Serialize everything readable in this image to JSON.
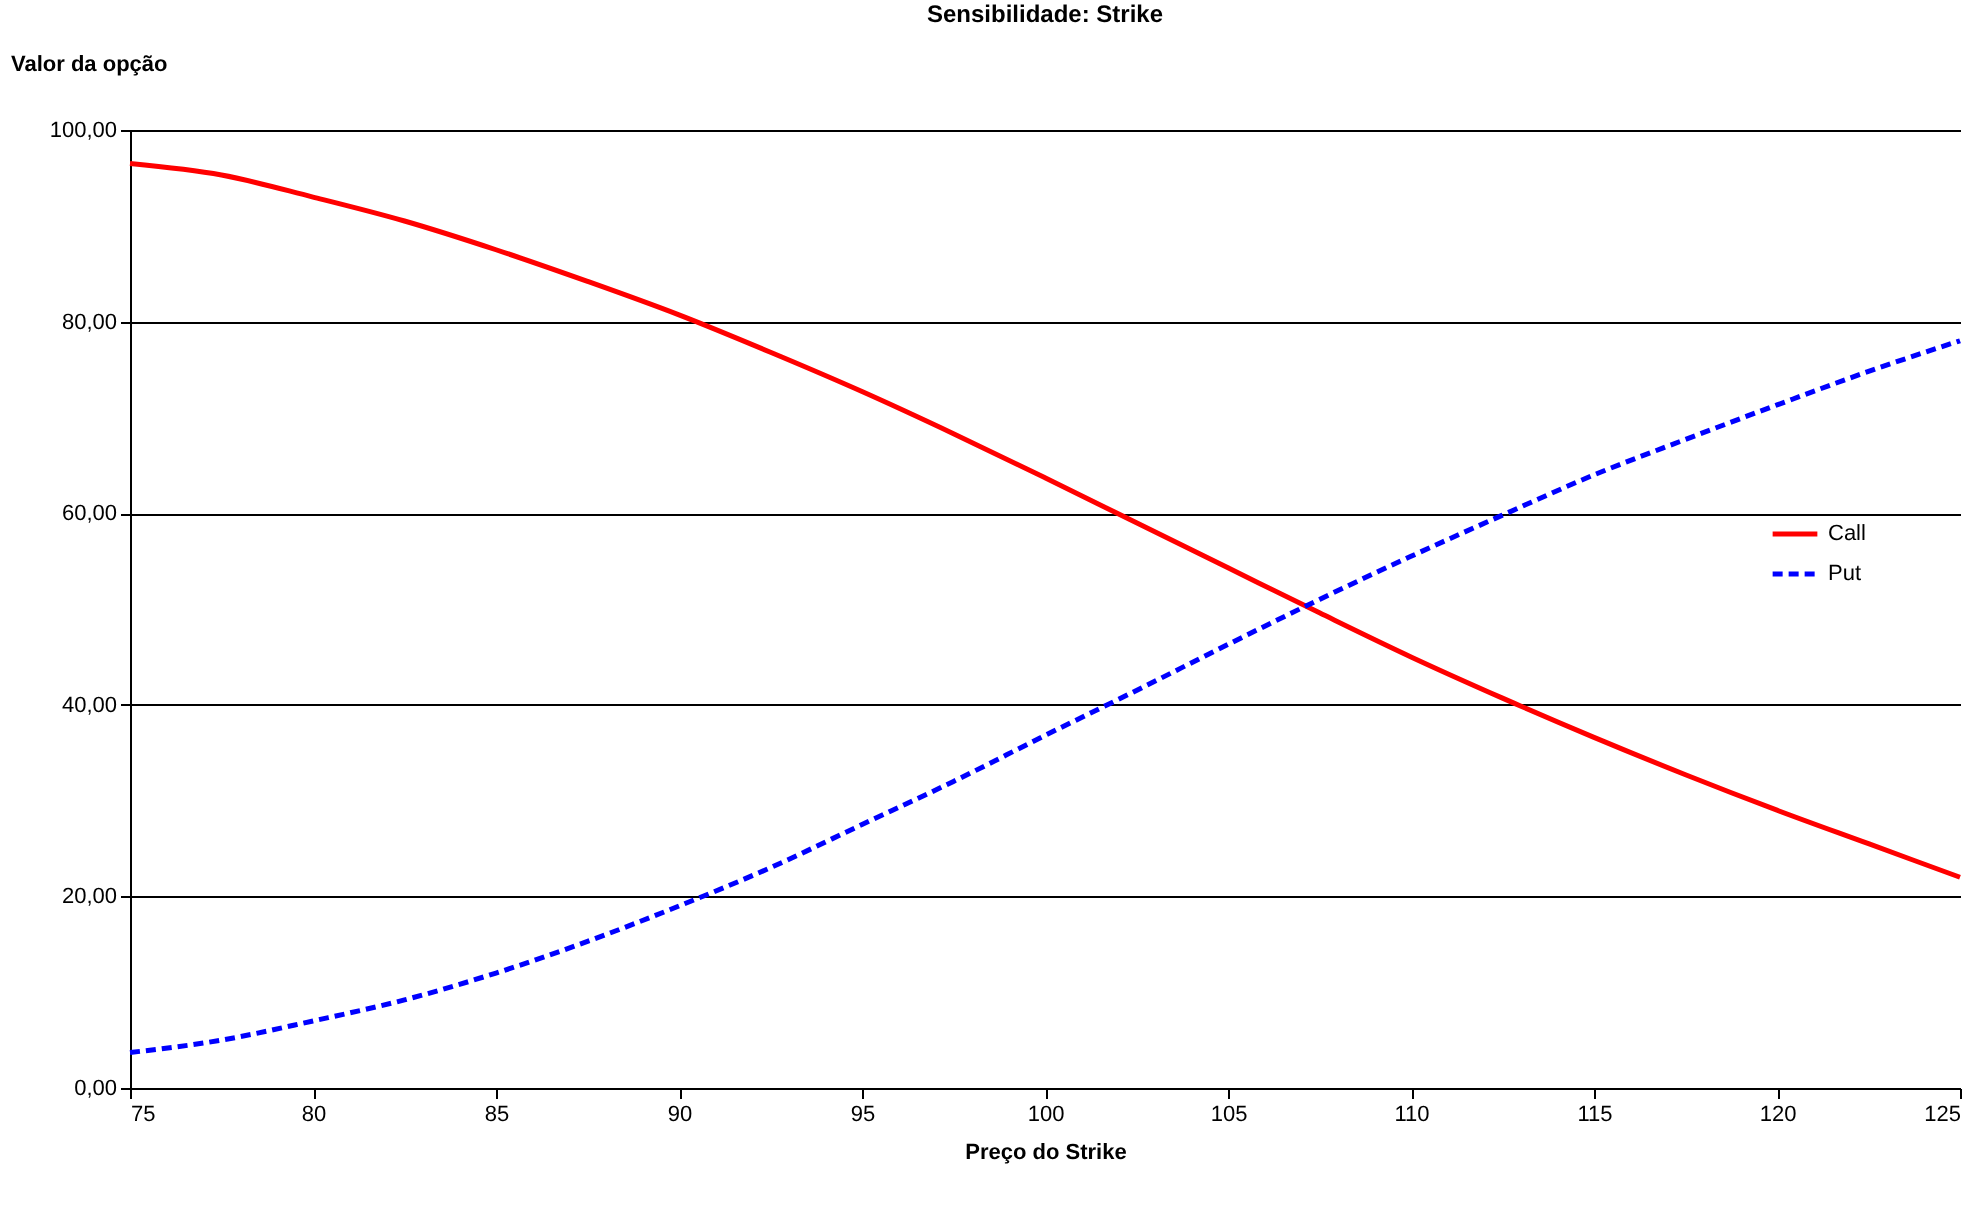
{
  "chart_data": {
    "type": "line",
    "title": "Sensibilidade: Strike",
    "xlabel": "Preço do Strike",
    "ylabel": "Valor da opção",
    "x": [
      75,
      77.5,
      80,
      82.5,
      85,
      87.5,
      90,
      92.5,
      95,
      97.5,
      100,
      102.5,
      105,
      107.5,
      110,
      112.5,
      115,
      117.5,
      120,
      122.5,
      125
    ],
    "series": [
      {
        "name": "Call",
        "color": "#ff0000",
        "line_style": "solid",
        "values": [
          96.5,
          95.3,
          93.0,
          90.5,
          87.5,
          84.2,
          80.7,
          76.8,
          72.7,
          68.3,
          63.7,
          59.0,
          54.3,
          49.6,
          45.0,
          40.7,
          36.6,
          32.7,
          29.0,
          25.5,
          22.0
        ]
      },
      {
        "name": "Put",
        "color": "#0000ff",
        "line_style": "dashed",
        "values": [
          3.7,
          5.0,
          7.0,
          9.2,
          12.0,
          15.3,
          19.0,
          23.0,
          27.5,
          32.0,
          36.8,
          41.5,
          46.3,
          51.0,
          55.5,
          59.8,
          64.0,
          67.7,
          71.3,
          74.8,
          78.0
        ]
      }
    ],
    "xlim": [
      75,
      125
    ],
    "xticks": [
      75,
      80,
      85,
      90,
      95,
      100,
      105,
      110,
      115,
      120,
      125
    ],
    "ylim": [
      0,
      100
    ],
    "yticks": [
      {
        "value": 0,
        "label": "0,00"
      },
      {
        "value": 20,
        "label": "20,00"
      },
      {
        "value": 40,
        "label": "40,00"
      },
      {
        "value": 60,
        "label": "60,00"
      },
      {
        "value": 80,
        "label": "80,00"
      },
      {
        "value": 100,
        "label": "100,00"
      }
    ],
    "grid": "y",
    "legend": "right",
    "marker": "none"
  }
}
